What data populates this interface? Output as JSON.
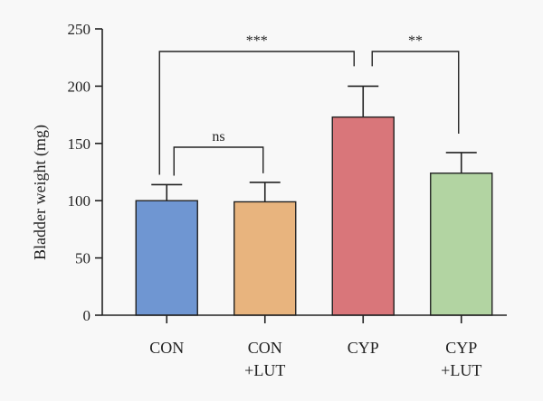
{
  "chart_data": {
    "type": "bar",
    "ylabel": "Bladder weight (mg)",
    "ylim": [
      0,
      250
    ],
    "yticks": [
      0,
      50,
      100,
      150,
      200,
      250
    ],
    "categories": [
      {
        "lines": [
          "CON"
        ]
      },
      {
        "lines": [
          "CON",
          "+LUT"
        ]
      },
      {
        "lines": [
          "CYP"
        ]
      },
      {
        "lines": [
          "CYP",
          "+LUT"
        ]
      }
    ],
    "values": [
      100,
      99,
      173,
      124
    ],
    "errors": [
      14,
      17,
      27,
      18
    ],
    "colors": [
      "#6f96d2",
      "#e8b47e",
      "#d9767a",
      "#b2d4a2"
    ],
    "comparisons": [
      {
        "from": 0,
        "to": 2,
        "label": "***"
      },
      {
        "from": 2,
        "to": 3,
        "label": "**"
      },
      {
        "from": 0,
        "to": 1,
        "label": "ns"
      }
    ]
  }
}
